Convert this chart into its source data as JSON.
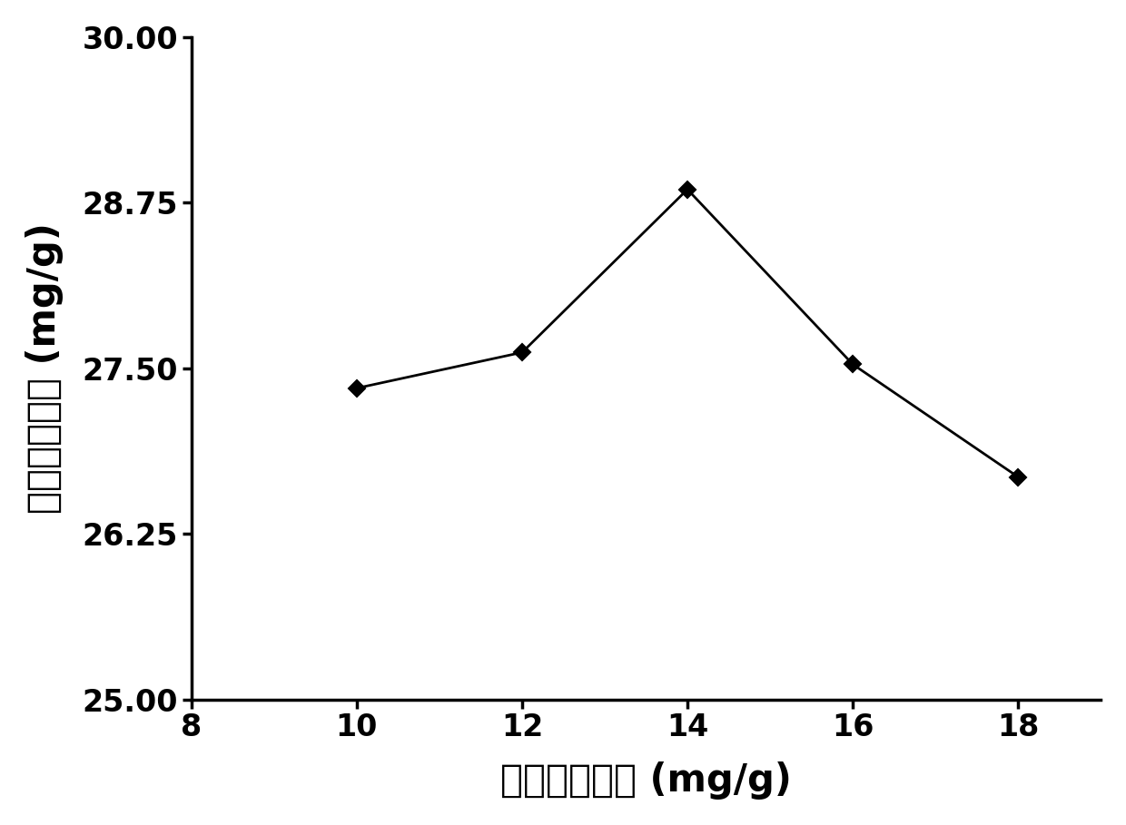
{
  "x": [
    10,
    12,
    14,
    16,
    18
  ],
  "y": [
    27.35,
    27.62,
    28.85,
    27.53,
    26.68
  ],
  "xlim": [
    8,
    19
  ],
  "ylim": [
    25.0,
    30.0
  ],
  "xticks": [
    8,
    10,
    12,
    14,
    16,
    18
  ],
  "yticks": [
    25.0,
    26.25,
    27.5,
    28.75,
    30.0
  ],
  "xlabel": "纤维素酶用量 (mg/g)",
  "ylabel": "迷辭香酸得率 (mg/g)",
  "line_color": "#000000",
  "marker": "D",
  "marker_size": 9,
  "marker_facecolor": "#000000",
  "linewidth": 2.0,
  "background_color": "#ffffff",
  "tick_fontsize": 24,
  "label_fontsize": 30
}
